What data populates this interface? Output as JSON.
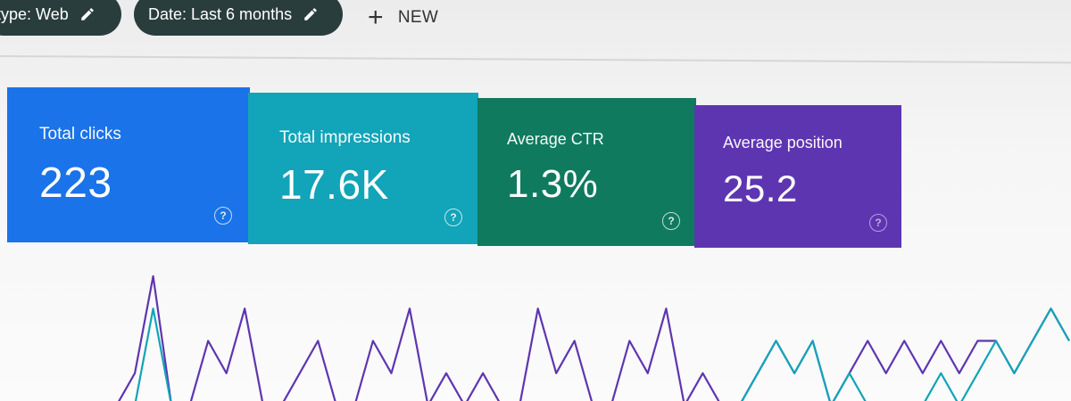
{
  "filters": {
    "type_chip": "type: Web",
    "date_chip": "Date: Last 6 months",
    "new_label": "NEW"
  },
  "metrics": {
    "clicks": {
      "label": "Total clicks",
      "value": "223",
      "color": "#1a73e8"
    },
    "impressions": {
      "label": "Total impressions",
      "value": "17.6K",
      "color": "#12a4b8"
    },
    "ctr": {
      "label": "Average CTR",
      "value": "1.3%",
      "color": "#0f7a5e"
    },
    "position": {
      "label": "Average position",
      "value": "25.2",
      "color": "#5e35b1"
    }
  },
  "chart_data": {
    "type": "line",
    "title": "",
    "xlabel": "",
    "ylabel": "",
    "series": [
      {
        "color": "#5e35b1",
        "values": [
          0,
          0,
          1,
          4,
          0,
          0,
          2,
          1,
          3,
          0,
          0,
          1,
          2,
          0,
          0,
          2,
          1,
          3,
          0,
          1,
          0,
          1,
          0,
          0,
          3,
          1,
          2,
          0,
          0,
          2,
          1,
          3,
          0,
          1,
          0,
          0,
          1,
          2,
          1,
          2,
          0,
          1,
          2,
          1,
          2,
          1,
          2,
          1,
          2,
          2,
          1,
          2,
          3,
          2
        ]
      },
      {
        "color": "#12a4b8",
        "values": [
          0,
          0,
          0,
          3,
          0,
          0,
          0,
          0,
          0,
          0,
          0,
          0,
          0,
          0,
          0,
          0,
          0,
          0,
          0,
          0,
          0,
          0,
          0,
          0,
          0,
          0,
          0,
          0,
          0,
          0,
          0,
          0,
          0,
          0,
          0,
          0,
          1,
          2,
          1,
          2,
          0,
          1,
          0,
          0,
          0,
          0,
          1,
          0,
          1,
          2,
          1,
          2,
          3,
          2
        ]
      }
    ],
    "ylim": [
      0,
      4
    ]
  }
}
